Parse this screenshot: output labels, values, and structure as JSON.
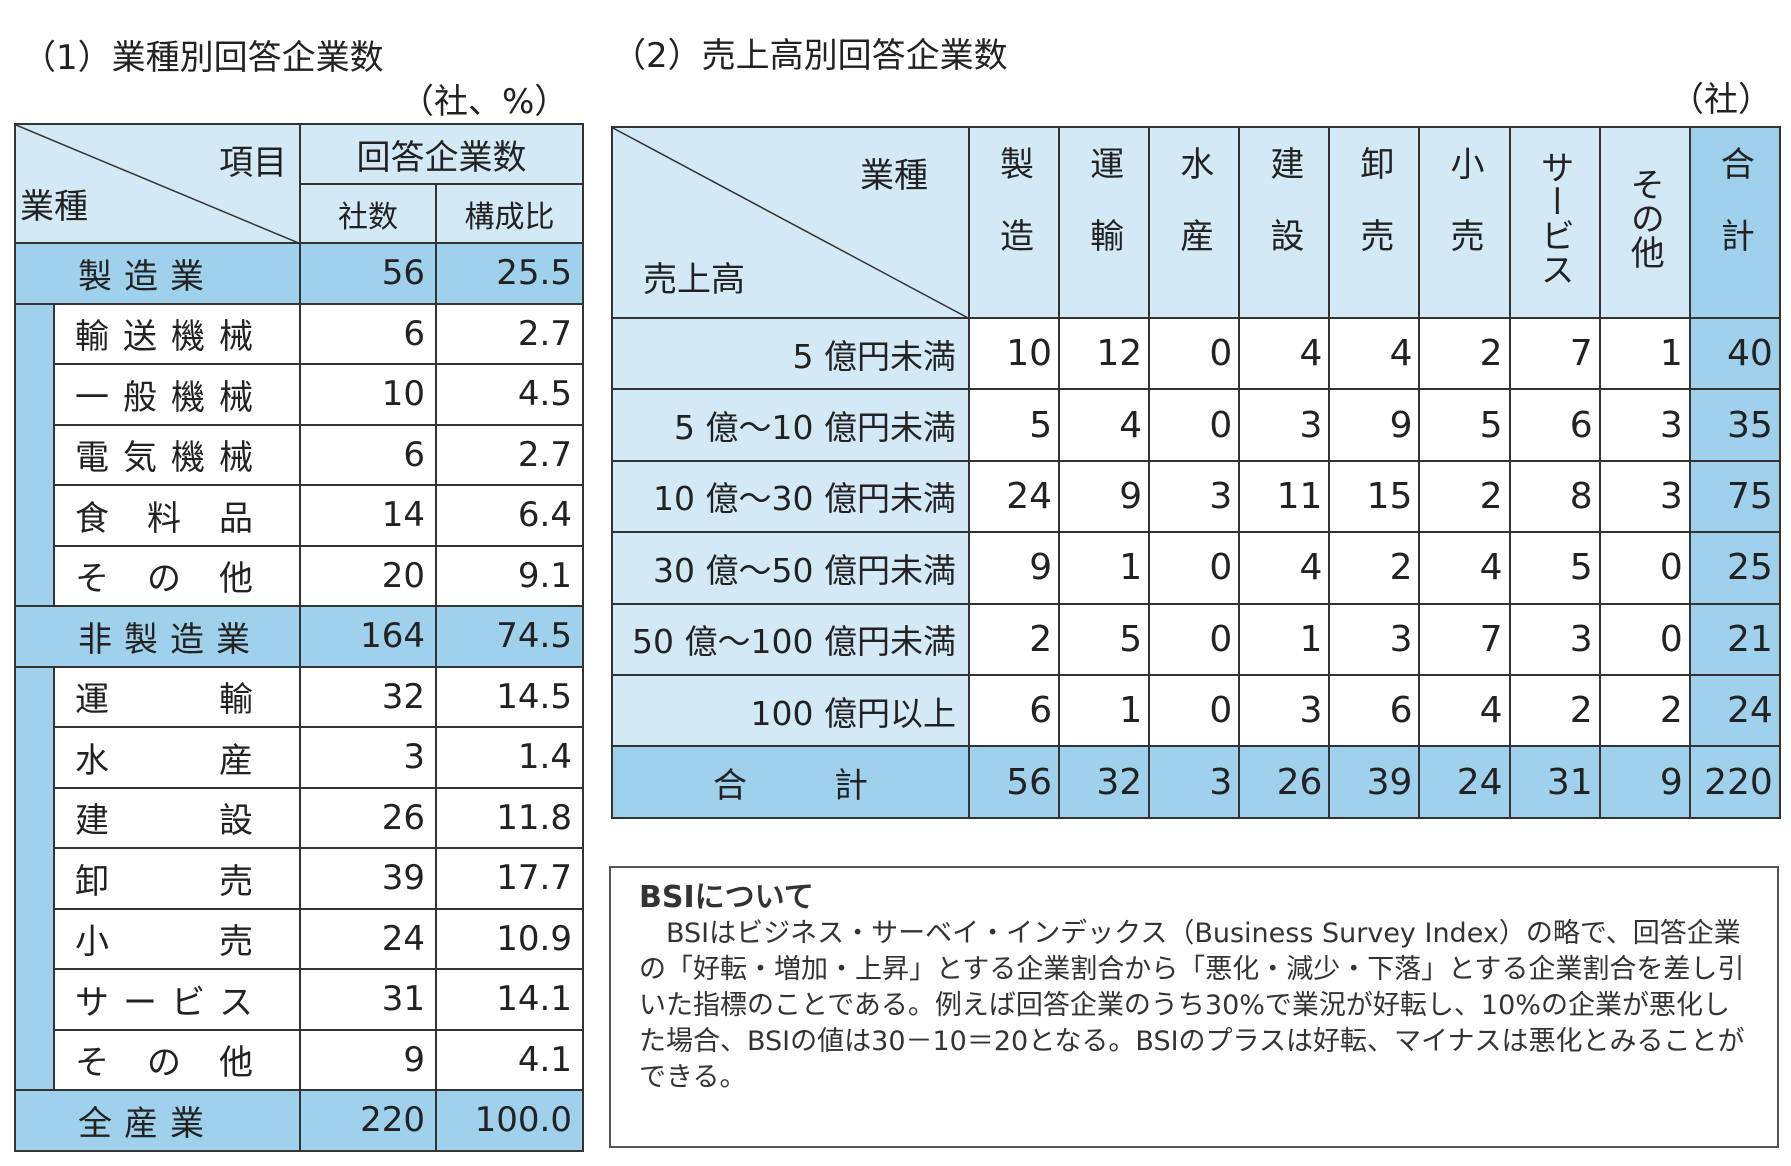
{
  "table1": {
    "title": "（1）業種別回答企業数",
    "unit": "（社、%）",
    "header": {
      "item": "項目",
      "industry": "業種",
      "group": "回答企業数",
      "count": "社数",
      "ratio": "構成比"
    },
    "groups": [
      {
        "name": "製造業",
        "count": "56",
        "ratio": "25.5",
        "items": [
          [
            "輸送機械",
            "6",
            "2.7"
          ],
          [
            "一般機械",
            "10",
            "4.5"
          ],
          [
            "電気機械",
            "6",
            "2.7"
          ],
          [
            "食料品",
            "14",
            "6.4"
          ],
          [
            "その他",
            "20",
            "9.1"
          ]
        ]
      },
      {
        "name": "非製造業",
        "count": "164",
        "ratio": "74.5",
        "items": [
          [
            "運輸",
            "32",
            "14.5"
          ],
          [
            "水産",
            "3",
            "1.4"
          ],
          [
            "建設",
            "26",
            "11.8"
          ],
          [
            "卸売",
            "39",
            "17.7"
          ],
          [
            "小売",
            "24",
            "10.9"
          ],
          [
            "サービス",
            "31",
            "14.1"
          ],
          [
            "その他",
            "9",
            "4.1"
          ]
        ]
      }
    ],
    "total": {
      "name": "全産業",
      "count": "220",
      "ratio": "100.0"
    }
  },
  "table2": {
    "title": "（2）売上高別回答企業数",
    "unit": "（社）",
    "corner": {
      "top": "業種",
      "bottom": "売上高"
    },
    "columns": [
      "製造",
      "運輸",
      "水産",
      "建設",
      "卸売",
      "小売",
      "サービス",
      "その他",
      "合計"
    ],
    "rows": [
      {
        "label": "5 億円未満",
        "values": [
          "10",
          "12",
          "0",
          "4",
          "4",
          "2",
          "7",
          "1",
          "40"
        ]
      },
      {
        "label": "5 億～10 億円未満",
        "values": [
          "5",
          "4",
          "0",
          "3",
          "9",
          "5",
          "6",
          "3",
          "35"
        ]
      },
      {
        "label": "10 億～30 億円未満",
        "values": [
          "24",
          "9",
          "3",
          "11",
          "15",
          "2",
          "8",
          "3",
          "75"
        ]
      },
      {
        "label": "30 億～50 億円未満",
        "values": [
          "9",
          "1",
          "0",
          "4",
          "2",
          "4",
          "5",
          "0",
          "25"
        ]
      },
      {
        "label": "50 億～100 億円未満",
        "values": [
          "2",
          "5",
          "0",
          "1",
          "3",
          "7",
          "3",
          "0",
          "21"
        ]
      },
      {
        "label": "100 億円以上",
        "values": [
          "6",
          "1",
          "0",
          "3",
          "6",
          "4",
          "2",
          "2",
          "24"
        ]
      }
    ],
    "total": {
      "label": "合計",
      "values": [
        "56",
        "32",
        "3",
        "26",
        "39",
        "24",
        "31",
        "9",
        "220"
      ]
    }
  },
  "note": {
    "title": "BSIについて",
    "body": "BSIはビジネス・サーベイ・インデックス（Business Survey Index）の略で、回答企業の「好転・増加・上昇」とする企業割合から「悪化・減少・下落」とする企業割合を差し引いた指標のことである。例えば回答企業のうち30%で業況が好転し、10%の企業が悪化した場合、BSIの値は30－10＝20となる。BSIのプラスは好転、マイナスは悪化とみることができる。"
  }
}
